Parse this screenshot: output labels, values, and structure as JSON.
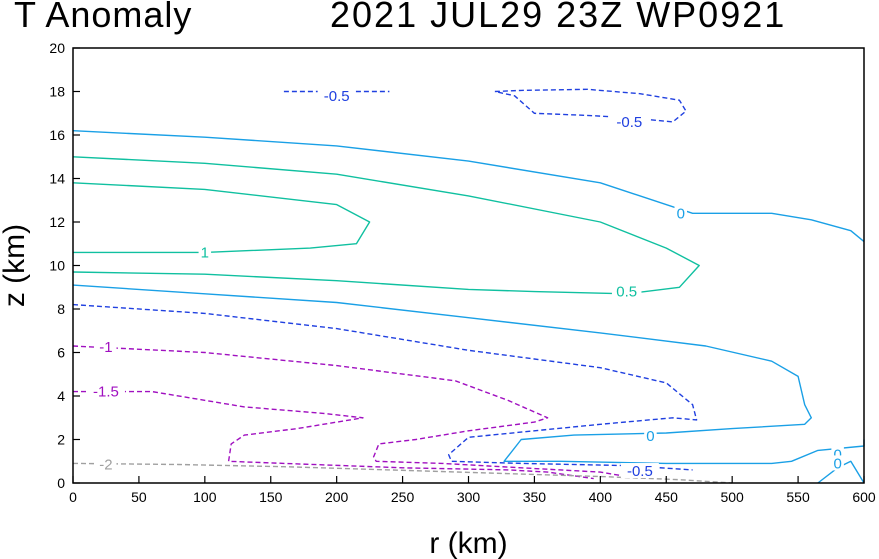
{
  "chart_data": {
    "type": "contour",
    "title_left": "T Anomaly",
    "title_right": "2021 JUL29 23Z   WP0921",
    "xlabel": "r (km)",
    "ylabel": "z (km)",
    "xlim": [
      0,
      600
    ],
    "ylim": [
      0,
      20
    ],
    "xticks": [
      0,
      50,
      100,
      150,
      200,
      250,
      300,
      350,
      400,
      450,
      500,
      550,
      600
    ],
    "yticks": [
      0,
      2,
      4,
      6,
      8,
      10,
      12,
      14,
      16,
      18,
      20
    ],
    "colors": {
      "zero": "#1aa0e6",
      "pos05": "#10c0a0",
      "neg05": "#2040e0",
      "neg1": "#a010c0",
      "neg2": "#a0a0a0"
    },
    "contours": [
      {
        "level": 0,
        "color": "zero",
        "dashed": false,
        "points": [
          [
            0,
            16.2
          ],
          [
            100,
            15.9
          ],
          [
            200,
            15.5
          ],
          [
            300,
            14.8
          ],
          [
            400,
            13.8
          ],
          [
            470,
            12.4
          ],
          [
            530,
            12.4
          ],
          [
            560,
            12.1
          ],
          [
            590,
            11.6
          ],
          [
            600,
            11.1
          ]
        ]
      },
      {
        "level": 0,
        "color": "zero",
        "dashed": false,
        "points": [
          [
            0,
            9.1
          ],
          [
            100,
            8.7
          ],
          [
            200,
            8.3
          ],
          [
            300,
            7.6
          ],
          [
            400,
            6.9
          ],
          [
            480,
            6.3
          ],
          [
            530,
            5.6
          ],
          [
            550,
            4.9
          ],
          [
            555,
            3.6
          ],
          [
            560,
            3.0
          ],
          [
            555,
            2.7
          ],
          [
            500,
            2.5
          ],
          [
            450,
            2.3
          ],
          [
            380,
            2.2
          ],
          [
            340,
            2.0
          ],
          [
            327,
            1.0
          ],
          [
            370,
            1.0
          ],
          [
            450,
            0.9
          ],
          [
            530,
            0.9
          ],
          [
            545,
            1.0
          ],
          [
            565,
            1.5
          ],
          [
            600,
            1.7
          ],
          [
            600,
            2.0
          ]
        ]
      },
      {
        "level": 0,
        "color": "zero",
        "dashed": false,
        "points": [
          [
            565,
            0
          ],
          [
            580,
            0.7
          ],
          [
            590,
            1.0
          ],
          [
            600,
            0
          ]
        ]
      },
      {
        "level": 0.5,
        "color": "pos05",
        "dashed": false,
        "points": [
          [
            0,
            15.0
          ],
          [
            100,
            14.7
          ],
          [
            200,
            14.2
          ],
          [
            300,
            13.2
          ],
          [
            400,
            12.0
          ],
          [
            450,
            10.8
          ],
          [
            475,
            10.0
          ],
          [
            460,
            9.0
          ],
          [
            420,
            8.7
          ],
          [
            350,
            8.8
          ],
          [
            300,
            8.9
          ],
          [
            200,
            9.3
          ],
          [
            100,
            9.6
          ],
          [
            0,
            9.7
          ]
        ]
      },
      {
        "level": 1,
        "color": "pos05",
        "dashed": false,
        "points": [
          [
            0,
            13.8
          ],
          [
            100,
            13.5
          ],
          [
            200,
            12.8
          ],
          [
            225,
            12.0
          ],
          [
            215,
            11.0
          ],
          [
            180,
            10.8
          ],
          [
            100,
            10.6
          ],
          [
            0,
            10.6
          ]
        ]
      },
      {
        "level": -0.5,
        "color": "neg05",
        "dashed": true,
        "points": [
          [
            160,
            18.0
          ],
          [
            190,
            18.0
          ],
          [
            215,
            18.0
          ],
          [
            240,
            18.0
          ]
        ]
      },
      {
        "level": -0.5,
        "color": "neg05",
        "dashed": true,
        "points": [
          [
            320,
            18.0
          ],
          [
            340,
            18.05
          ],
          [
            390,
            18.1
          ],
          [
            430,
            17.9
          ],
          [
            460,
            17.6
          ],
          [
            465,
            17.1
          ],
          [
            455,
            16.6
          ],
          [
            420,
            16.8
          ],
          [
            390,
            16.9
          ],
          [
            350,
            17.0
          ],
          [
            335,
            17.8
          ],
          [
            320,
            18.0
          ]
        ]
      },
      {
        "level": -0.5,
        "color": "neg05",
        "dashed": true,
        "points": [
          [
            0,
            8.2
          ],
          [
            100,
            7.8
          ],
          [
            200,
            7.1
          ],
          [
            300,
            6.1
          ],
          [
            400,
            5.3
          ],
          [
            450,
            4.6
          ],
          [
            470,
            3.6
          ],
          [
            473,
            2.9
          ],
          [
            455,
            3.0
          ],
          [
            400,
            2.7
          ],
          [
            350,
            2.4
          ],
          [
            300,
            2.1
          ],
          [
            285,
            1.3
          ],
          [
            287,
            1.0
          ],
          [
            340,
            0.9
          ],
          [
            420,
            0.8
          ],
          [
            470,
            0.6
          ]
        ]
      },
      {
        "level": -1,
        "color": "neg1",
        "dashed": true,
        "points": [
          [
            0,
            6.3
          ],
          [
            100,
            6.0
          ],
          [
            200,
            5.4
          ],
          [
            290,
            4.7
          ],
          [
            330,
            3.8
          ],
          [
            360,
            3.0
          ],
          [
            350,
            2.8
          ],
          [
            300,
            2.4
          ],
          [
            260,
            2.0
          ],
          [
            232,
            1.8
          ],
          [
            228,
            1.2
          ],
          [
            230,
            1.0
          ],
          [
            280,
            0.9
          ],
          [
            340,
            0.7
          ],
          [
            400,
            0.5
          ],
          [
            420,
            0.3
          ]
        ]
      },
      {
        "level": -1.5,
        "color": "neg1",
        "dashed": true,
        "points": [
          [
            0,
            4.2
          ],
          [
            60,
            4.2
          ],
          [
            130,
            3.5
          ],
          [
            190,
            3.2
          ],
          [
            220,
            3.0
          ],
          [
            170,
            2.5
          ],
          [
            130,
            2.2
          ],
          [
            120,
            1.8
          ],
          [
            118,
            1.0
          ],
          [
            160,
            0.9
          ],
          [
            250,
            0.7
          ],
          [
            330,
            0.6
          ],
          [
            360,
            0.5
          ],
          [
            395,
            0.2
          ]
        ]
      },
      {
        "level": -2,
        "color": "neg2",
        "dashed": true,
        "points": [
          [
            0,
            0.9
          ],
          [
            80,
            0.85
          ],
          [
            160,
            0.75
          ],
          [
            240,
            0.6
          ],
          [
            320,
            0.45
          ],
          [
            400,
            0.3
          ],
          [
            460,
            0.15
          ],
          [
            500,
            0
          ]
        ]
      }
    ],
    "labels": [
      {
        "text": "0",
        "x": 461,
        "y": 12.4,
        "color": "zero"
      },
      {
        "text": "0",
        "x": 438,
        "y": 2.15,
        "color": "zero"
      },
      {
        "text": "0",
        "x": 580,
        "y": 1.3,
        "color": "zero"
      },
      {
        "text": "0",
        "x": 580,
        "y": 0.9,
        "color": "zero"
      },
      {
        "text": "0.5",
        "x": 420,
        "y": 8.8,
        "color": "pos05"
      },
      {
        "text": "1",
        "x": 100,
        "y": 10.6,
        "color": "pos05"
      },
      {
        "text": "-0.5",
        "x": 200,
        "y": 17.8,
        "color": "neg05"
      },
      {
        "text": "-0.5",
        "x": 422,
        "y": 16.6,
        "color": "neg05"
      },
      {
        "text": "-0.5",
        "x": 430,
        "y": 0.55,
        "color": "neg05"
      },
      {
        "text": "-1",
        "x": 25,
        "y": 6.25,
        "color": "neg1"
      },
      {
        "text": "-1.5",
        "x": 25,
        "y": 4.2,
        "color": "neg1"
      },
      {
        "text": "-2",
        "x": 25,
        "y": 0.85,
        "color": "neg2"
      }
    ]
  }
}
